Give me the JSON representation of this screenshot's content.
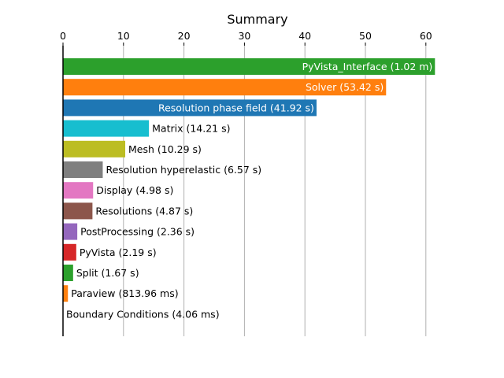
{
  "chart_data": {
    "type": "bar",
    "orientation": "horizontal",
    "title": "Summary",
    "xlabel": "",
    "ylabel": "",
    "xlim": [
      0,
      62
    ],
    "x_ticks": [
      0,
      10,
      20,
      30,
      40,
      50,
      60
    ],
    "x_axis_position": "top",
    "grid": "vertical",
    "legend": "none",
    "bars": [
      {
        "label": "PyVista_Interface (1.02 m)",
        "value": 61.5,
        "color": "#2ca02c",
        "label_inside": true
      },
      {
        "label": "Solver (53.42 s)",
        "value": 53.42,
        "color": "#ff7f0e",
        "label_inside": true
      },
      {
        "label": "Resolution phase field (41.92 s)",
        "value": 41.92,
        "color": "#1f77b4",
        "label_inside": true
      },
      {
        "label": "Matrix (14.21 s)",
        "value": 14.21,
        "color": "#17becf",
        "label_inside": false
      },
      {
        "label": "Mesh (10.29 s)",
        "value": 10.29,
        "color": "#bcbd22",
        "label_inside": false
      },
      {
        "label": "Resolution hyperelastic (6.57 s)",
        "value": 6.57,
        "color": "#7f7f7f",
        "label_inside": false
      },
      {
        "label": "Display (4.98 s)",
        "value": 4.98,
        "color": "#e377c2",
        "label_inside": false
      },
      {
        "label": "Resolutions (4.87 s)",
        "value": 4.87,
        "color": "#8c564b",
        "label_inside": false
      },
      {
        "label": "PostProcessing (2.36 s)",
        "value": 2.36,
        "color": "#9467bd",
        "label_inside": false
      },
      {
        "label": "PyVista (2.19 s)",
        "value": 2.19,
        "color": "#d62728",
        "label_inside": false
      },
      {
        "label": "Split (1.67 s)",
        "value": 1.67,
        "color": "#2ca02c",
        "label_inside": false
      },
      {
        "label": "Paraview (813.96 ms)",
        "value": 0.81396,
        "color": "#ff7f0e",
        "label_inside": false
      },
      {
        "label": "Boundary Conditions (4.06 ms)",
        "value": 0.00406,
        "color": "#1f77b4",
        "label_inside": false
      }
    ]
  }
}
